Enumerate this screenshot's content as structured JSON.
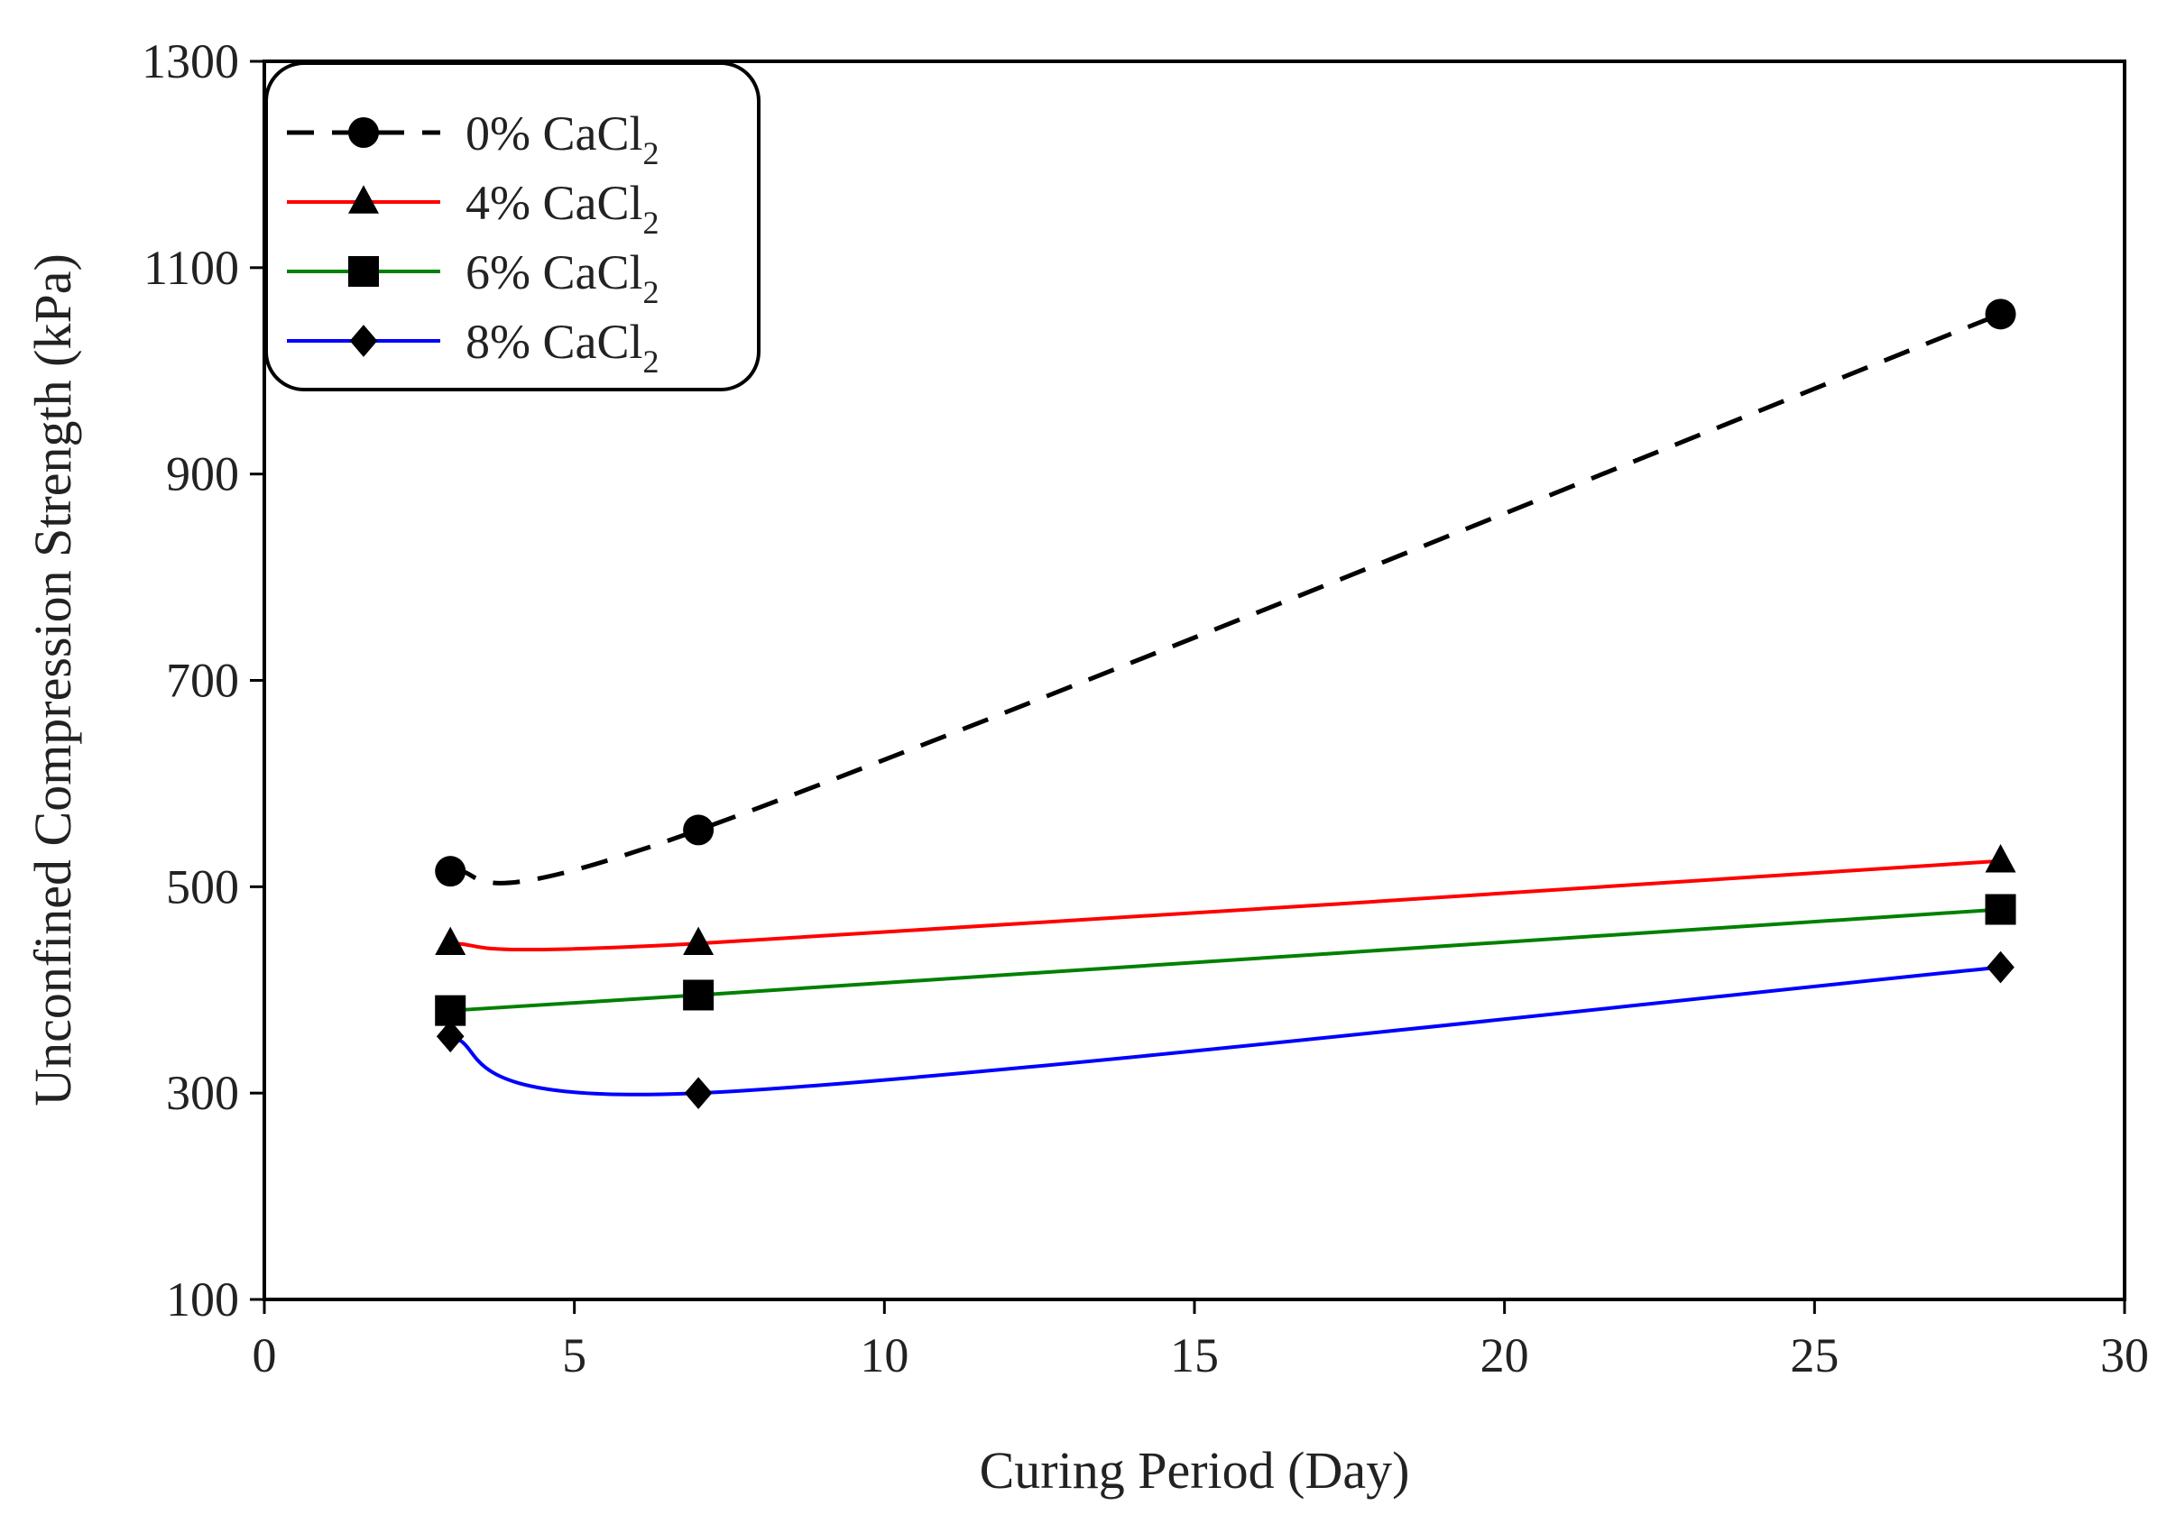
{
  "chart_data": {
    "type": "line",
    "title": "",
    "xlabel": "Curing Period (Day)",
    "ylabel": "Unconfined Compression Strength (kPa)",
    "xlim": [
      0,
      30
    ],
    "ylim": [
      100,
      1300
    ],
    "xticks": [
      0,
      5,
      10,
      15,
      20,
      25,
      30
    ],
    "yticks": [
      100,
      300,
      500,
      700,
      900,
      1100,
      1300
    ],
    "xtick_labels": [
      "0",
      "5",
      "10",
      "15",
      "20",
      "25",
      "30"
    ],
    "ytick_labels": [
      "100",
      "300",
      "500",
      "700",
      "900",
      "1100",
      "1300"
    ],
    "grid": false,
    "legend_position": "top-left",
    "series": [
      {
        "name": "0% CaCl2",
        "label_main": "0% CaCl",
        "label_sub": "2",
        "x": [
          3,
          7,
          28
        ],
        "values": [
          515,
          555,
          1055
        ],
        "color": "#000000",
        "marker": "circle",
        "line_style": "dashed"
      },
      {
        "name": "4% CaCl2",
        "label_main": "4% CaCl",
        "label_sub": "2",
        "x": [
          3,
          7,
          28
        ],
        "values": [
          445,
          445,
          525
        ],
        "color": "#ff0000",
        "marker": "triangle",
        "line_style": "solid"
      },
      {
        "name": "6% CaCl2",
        "label_main": "6% CaCl",
        "label_sub": "2",
        "x": [
          3,
          7,
          28
        ],
        "values": [
          380,
          395,
          478
        ],
        "color": "#008000",
        "marker": "square",
        "line_style": "solid"
      },
      {
        "name": "8% CaCl2",
        "label_main": "8% CaCl",
        "label_sub": "2",
        "x": [
          3,
          7,
          28
        ],
        "values": [
          355,
          300,
          422
        ],
        "color": "#0000ff",
        "marker": "diamond",
        "line_style": "solid"
      }
    ]
  }
}
